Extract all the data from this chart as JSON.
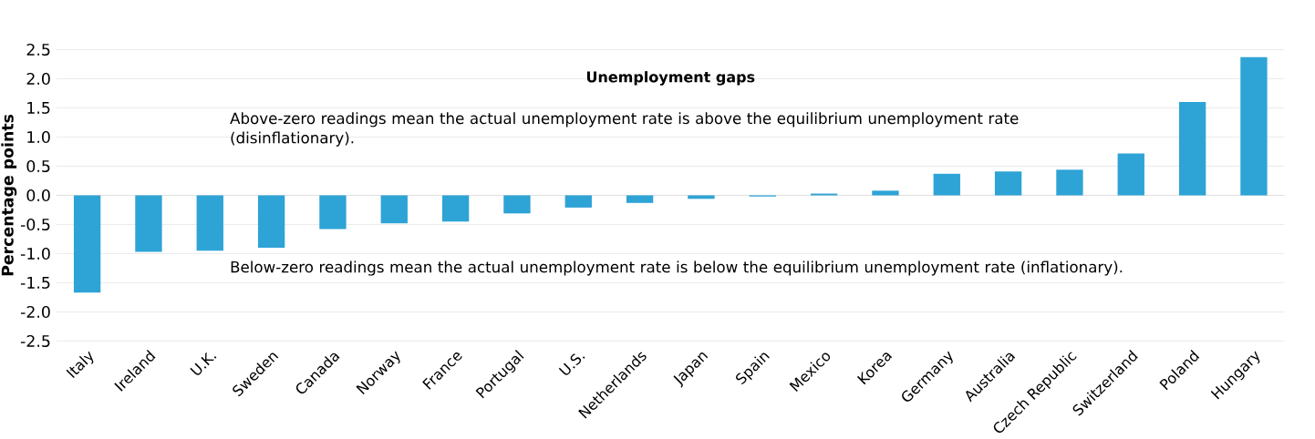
{
  "chart_data": {
    "type": "bar",
    "title": "Unemployment gaps",
    "ylabel": "Percentage points",
    "categories": [
      "Italy",
      "Ireland",
      "U.K.",
      "Sweden",
      "Canada",
      "Norway",
      "France",
      "Portugal",
      "U.S.",
      "Netherlands",
      "Japan",
      "Spain",
      "Mexico",
      "Korea",
      "Germany",
      "Australia",
      "Czech Republic",
      "Switzerland",
      "Poland",
      "Hungary"
    ],
    "values": [
      -1.67,
      -0.97,
      -0.95,
      -0.9,
      -0.58,
      -0.48,
      -0.45,
      -0.31,
      -0.21,
      -0.13,
      -0.06,
      -0.02,
      0.03,
      0.08,
      0.37,
      0.41,
      0.44,
      0.72,
      1.6,
      2.37
    ],
    "color": "#2ea3d6",
    "ylim": [
      -2.5,
      2.5
    ],
    "yticks": [
      {
        "value": -2.5,
        "label": "-2.5"
      },
      {
        "value": -2.0,
        "label": "-2.0"
      },
      {
        "value": -1.5,
        "label": "-1.5"
      },
      {
        "value": -1.0,
        "label": "-1.0"
      },
      {
        "value": -0.5,
        "label": "-0.5"
      },
      {
        "value": 0.0,
        "label": "0.0"
      },
      {
        "value": 0.5,
        "label": "0.5"
      },
      {
        "value": 1.0,
        "label": "1.0"
      },
      {
        "value": 1.5,
        "label": "1.5"
      },
      {
        "value": 2.0,
        "label": "2.0"
      },
      {
        "value": 2.5,
        "label": "2.5"
      }
    ],
    "grid": "y",
    "annotations": [
      "Above-zero readings mean the actual unemployment rate is above the equilibrium unemployment rate (disinflationary).",
      "Below-zero readings mean the actual unemployment rate is below the equilibrium unemployment rate (inflationary)."
    ]
  }
}
